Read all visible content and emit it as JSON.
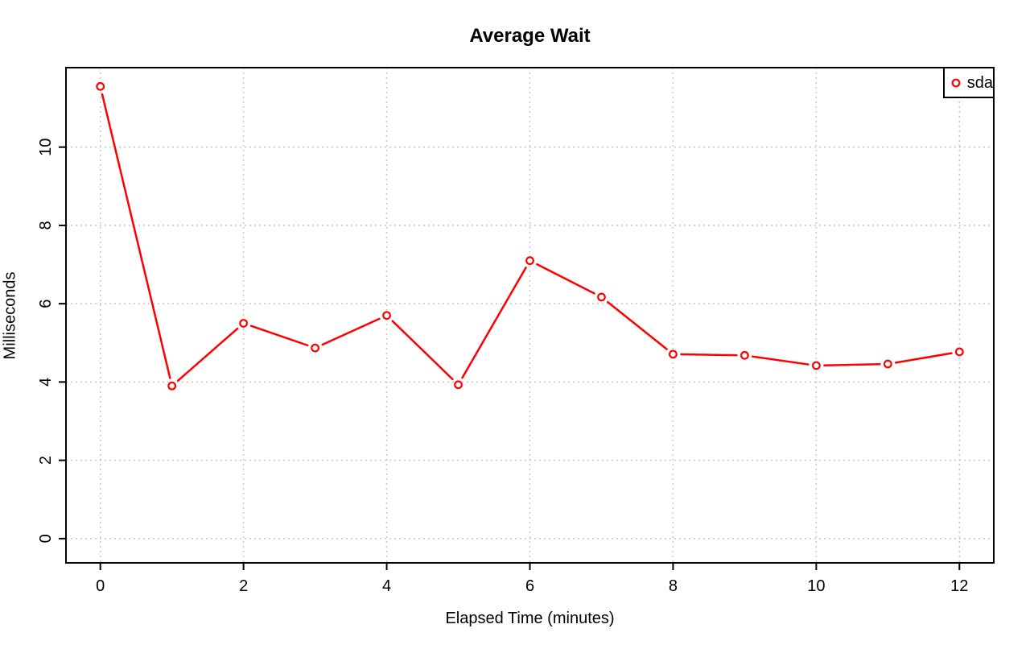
{
  "page": {
    "background": "#ffffff"
  },
  "chart_data": {
    "type": "line",
    "title": "Average Wait",
    "xlabel": "Elapsed Time (minutes)",
    "ylabel": "Milliseconds",
    "x": [
      0,
      1,
      2,
      3,
      4,
      5,
      6,
      7,
      8,
      9,
      10,
      11,
      12
    ],
    "series": [
      {
        "name": "sda",
        "color": "#ff0000",
        "values": [
          11.55,
          3.9,
          5.5,
          4.87,
          5.7,
          3.93,
          7.1,
          6.17,
          4.71,
          4.68,
          4.42,
          4.46,
          4.77
        ]
      }
    ],
    "xticks": [
      0,
      2,
      4,
      6,
      8,
      10,
      12
    ],
    "yticks": [
      0,
      2,
      4,
      6,
      8,
      10
    ],
    "xlim": [
      -0.48,
      12.48
    ],
    "ylim": [
      -0.62,
      12.03
    ],
    "grid": true,
    "grid_color": "#c3c3c3",
    "grid_style": "dotted",
    "axis_color": "#000000",
    "marker": "open-circle",
    "line_style": "segments-with-point-gaps",
    "legend": {
      "position": "top-right",
      "entries": [
        {
          "label": "sda",
          "color": "#ff0000",
          "marker": "open-circle"
        }
      ]
    }
  }
}
